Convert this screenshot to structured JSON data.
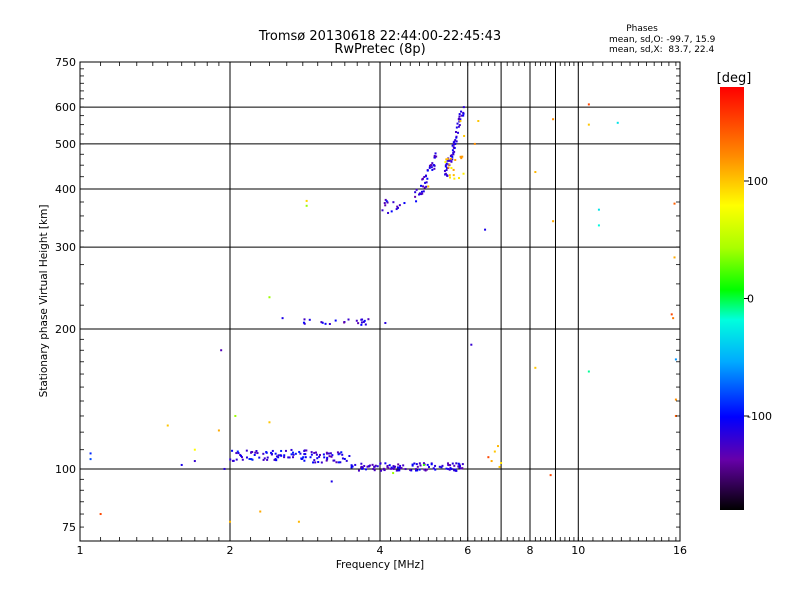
{
  "chart_data": {
    "type": "scatter",
    "title": "Tromsø 20130618 22:44:00-22:45:43",
    "subtitle": "RwPretec (8p)",
    "xlabel": "Frequency [MHz]",
    "ylabel": "Stationary phase Virtual Height [km]",
    "x_scale": "log",
    "y_scale": "log",
    "xlim": [
      1,
      16
    ],
    "ylim": [
      70,
      750
    ],
    "x_ticks": [
      1,
      2,
      4,
      6,
      8,
      10,
      16
    ],
    "x_tick_labels": [
      "1",
      "2",
      "4",
      "6",
      "8",
      "10",
      "16"
    ],
    "y_ticks": [
      75,
      100,
      200,
      300,
      400,
      500,
      600,
      750
    ],
    "y_tick_labels": [
      "75",
      "100",
      "200",
      "300",
      "400",
      "500",
      "600",
      "750"
    ],
    "grid": true,
    "phase_box": {
      "title": "Phases",
      "line_o": "mean, sd,O: -99.7, 15.9",
      "line_x": "mean, sd,X:  83.7, 22.4"
    },
    "colorbar": {
      "label": "[deg]",
      "range": [
        -180,
        180
      ],
      "ticks": [
        100,
        0,
        -100
      ],
      "tick_labels": [
        "100",
        "0",
        "-100"
      ]
    },
    "clusters": [
      {
        "x": [
          2.0,
          2.9
        ],
        "y": [
          104,
          110
        ],
        "n": 70,
        "phase": -110
      },
      {
        "x": [
          2.9,
          3.5
        ],
        "y": [
          103,
          109
        ],
        "n": 40,
        "phase": -115
      },
      {
        "x": [
          3.5,
          5.9
        ],
        "y": [
          99,
          103
        ],
        "n": 110,
        "phase": -120
      },
      {
        "x": [
          4.0,
          4.7
        ],
        "y": [
          355,
          380
        ],
        "n": 14,
        "phase": -115
      },
      {
        "x": [
          4.7,
          5.2
        ],
        "y": [
          385,
          470
        ],
        "n": 40,
        "phase": -118
      },
      {
        "x": [
          5.4,
          5.9
        ],
        "y": [
          430,
          610
        ],
        "n": 60,
        "phase": -115
      },
      {
        "x": [
          2.8,
          3.8
        ],
        "y": [
          204,
          210
        ],
        "n": 22,
        "phase": -120
      },
      {
        "x": [
          5.4,
          5.9
        ],
        "y": [
          420,
          470
        ],
        "n": 18,
        "phase": 100
      }
    ],
    "points": [
      {
        "x": 1.05,
        "y": 108,
        "p": -90
      },
      {
        "x": 1.05,
        "y": 105,
        "p": -80
      },
      {
        "x": 1.1,
        "y": 80,
        "p": 150
      },
      {
        "x": 1.5,
        "y": 124,
        "p": 100
      },
      {
        "x": 1.6,
        "y": 102,
        "p": -110
      },
      {
        "x": 1.7,
        "y": 104,
        "p": -120
      },
      {
        "x": 1.7,
        "y": 110,
        "p": 80
      },
      {
        "x": 1.9,
        "y": 121,
        "p": 110
      },
      {
        "x": 1.92,
        "y": 180,
        "p": -130
      },
      {
        "x": 1.95,
        "y": 100,
        "p": -115
      },
      {
        "x": 2.0,
        "y": 77,
        "p": 105
      },
      {
        "x": 2.05,
        "y": 130,
        "p": 40
      },
      {
        "x": 2.3,
        "y": 81,
        "p": 110
      },
      {
        "x": 2.4,
        "y": 126,
        "p": 100
      },
      {
        "x": 2.4,
        "y": 234,
        "p": 40
      },
      {
        "x": 2.55,
        "y": 211,
        "p": -110
      },
      {
        "x": 2.75,
        "y": 77,
        "p": 105
      },
      {
        "x": 2.85,
        "y": 368,
        "p": 40
      },
      {
        "x": 2.85,
        "y": 377,
        "p": 95
      },
      {
        "x": 3.2,
        "y": 94,
        "p": -110
      },
      {
        "x": 4.1,
        "y": 206,
        "p": -115
      },
      {
        "x": 4.25,
        "y": 98,
        "p": 40
      },
      {
        "x": 4.9,
        "y": 102,
        "p": 20
      },
      {
        "x": 5.0,
        "y": 405,
        "p": 100
      },
      {
        "x": 5.8,
        "y": 560,
        "p": 100
      },
      {
        "x": 5.9,
        "y": 520,
        "p": 100
      },
      {
        "x": 6.1,
        "y": 185,
        "p": -120
      },
      {
        "x": 6.2,
        "y": 500,
        "p": 120
      },
      {
        "x": 6.3,
        "y": 560,
        "p": 100
      },
      {
        "x": 6.5,
        "y": 327,
        "p": -110
      },
      {
        "x": 6.7,
        "y": 104,
        "p": 110
      },
      {
        "x": 6.8,
        "y": 109,
        "p": 100
      },
      {
        "x": 6.9,
        "y": 112,
        "p": 105
      },
      {
        "x": 6.6,
        "y": 106,
        "p": 150
      },
      {
        "x": 6.95,
        "y": 101,
        "p": 100
      },
      {
        "x": 7.0,
        "y": 103,
        "p": 90
      },
      {
        "x": 8.2,
        "y": 435,
        "p": 105
      },
      {
        "x": 8.2,
        "y": 165,
        "p": 100
      },
      {
        "x": 8.8,
        "y": 97,
        "p": 150
      },
      {
        "x": 8.9,
        "y": 341,
        "p": 110
      },
      {
        "x": 8.9,
        "y": 565,
        "p": 120
      },
      {
        "x": 10.5,
        "y": 608,
        "p": 150
      },
      {
        "x": 10.5,
        "y": 550,
        "p": 100
      },
      {
        "x": 10.5,
        "y": 162,
        "p": -10
      },
      {
        "x": 11.0,
        "y": 361,
        "p": -30
      },
      {
        "x": 11.0,
        "y": 334,
        "p": -20
      },
      {
        "x": 12.0,
        "y": 555,
        "p": -30
      },
      {
        "x": 15.4,
        "y": 215,
        "p": 150
      },
      {
        "x": 15.5,
        "y": 211,
        "p": 130
      },
      {
        "x": 15.6,
        "y": 372,
        "p": 140
      },
      {
        "x": 15.6,
        "y": 285,
        "p": 110
      },
      {
        "x": 15.7,
        "y": 172,
        "p": -60
      },
      {
        "x": 15.7,
        "y": 130,
        "p": 140
      },
      {
        "x": 15.7,
        "y": 141,
        "p": 120
      }
    ]
  }
}
